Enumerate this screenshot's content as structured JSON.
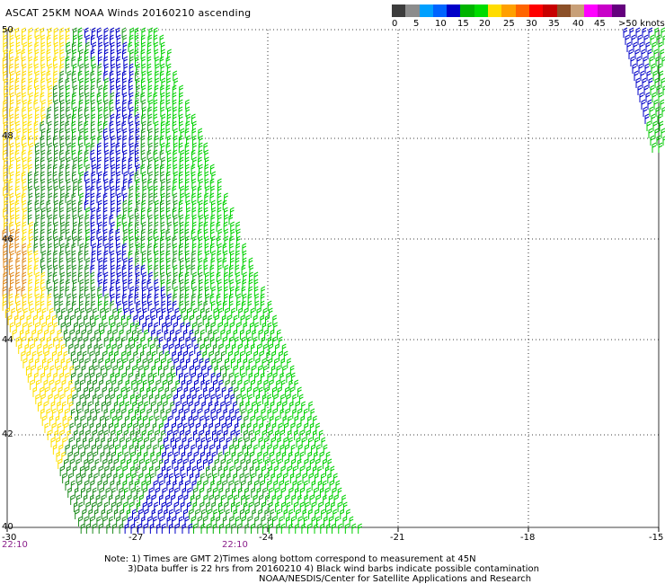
{
  "title": "ASCAT 25KM NOAA Winds 20160210 ascending",
  "legend": {
    "colors": [
      "#3c3c3c",
      "#8c8c8c",
      "#00a0ff",
      "#0064ff",
      "#0000c8",
      "#00b400",
      "#00dc00",
      "#ffdc00",
      "#ffa000",
      "#ff6400",
      "#ff0000",
      "#c80000",
      "#8c5028",
      "#c8a078",
      "#ff00ff",
      "#c800c8",
      "#64007d"
    ],
    "labels": [
      "0",
      "5",
      "10",
      "15",
      "20",
      "25",
      "30",
      "35",
      "40",
      "45",
      ">50 knots"
    ]
  },
  "axes": {
    "lat_ticks": [
      "50",
      "48",
      "46",
      "44",
      "42",
      "40"
    ],
    "lon_ticks": [
      "-30",
      "-27",
      "-24",
      "-21",
      "-18",
      "-15"
    ],
    "time_left": "22:10",
    "time_mid": "22:10"
  },
  "notes": {
    "line1": "Note: 1) Times are GMT 2)Times along bottom correspond to measurement at 45N",
    "line2": "3)Data buffer is 22 hrs from 20160210 4) Black wind barbs indicate possible contamination",
    "line3": "NOAA/NESDIS/Center for Satellite Applications and Research"
  }
}
